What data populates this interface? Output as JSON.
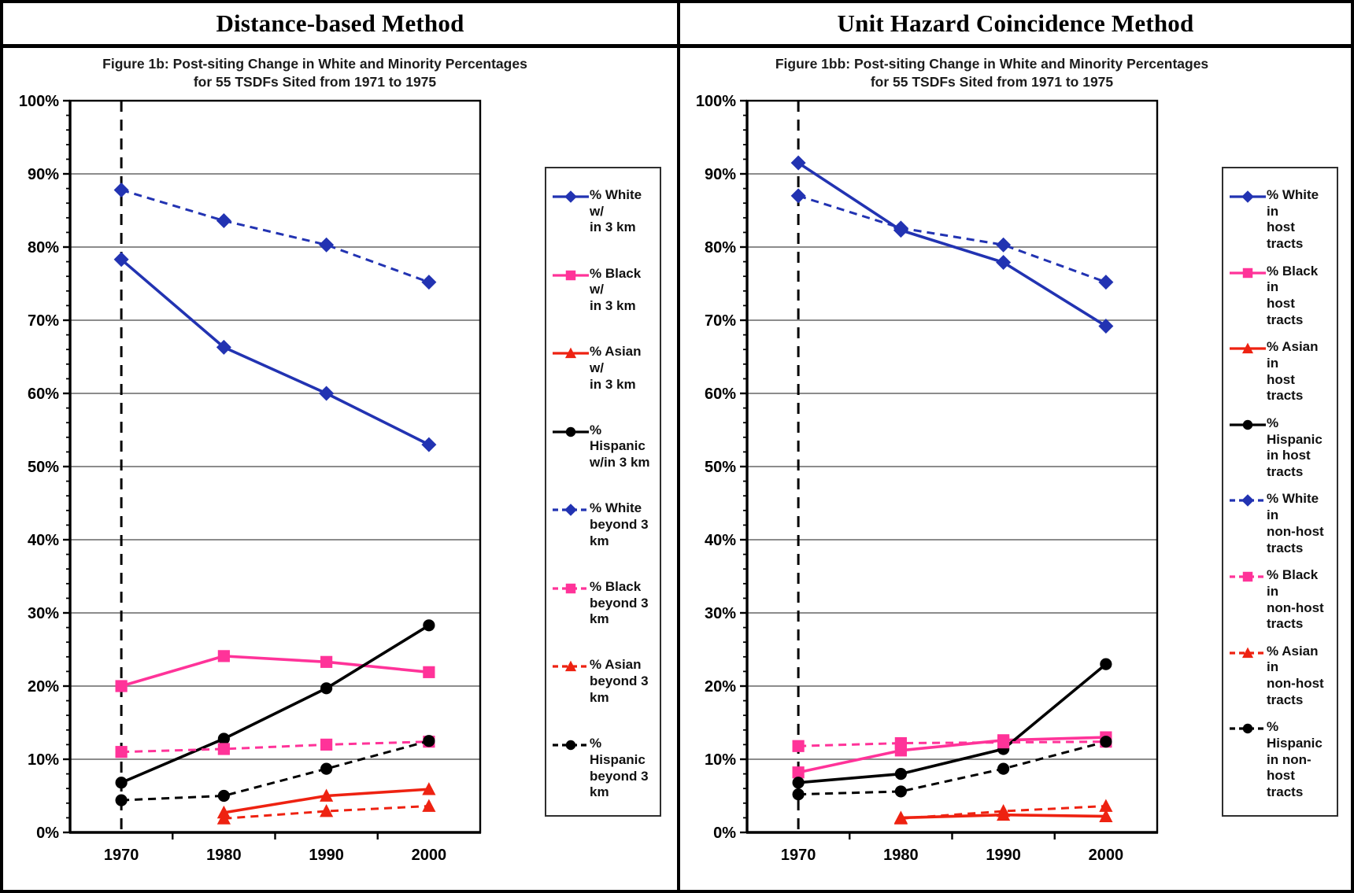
{
  "style": {
    "blue": "#2233b2",
    "magenta": "#ff3399",
    "red": "#ee2211",
    "black": "#000000",
    "grid_gray": "#8c8c8c",
    "axis_color": "#000000"
  },
  "chart_data": [
    {
      "type": "line",
      "panel_title": "Distance-based Method",
      "title_line1": "Figure 1b: Post-siting Change in White and Minority Percentages",
      "title_line2": "for 55 TSDFs Sited from 1971 to 1975",
      "categories": [
        "1970",
        "1980",
        "1990",
        "2000"
      ],
      "ylim": [
        0,
        100
      ],
      "ytick_step": 10,
      "ytick_minor_step": 2,
      "ytick_suffix": "%",
      "grid": "horizontal",
      "legend_position": "right",
      "vline_at_category": "1970",
      "series": [
        {
          "name": "% White w/in 3 km",
          "label_lines": [
            "% White w/",
            "in 3 km"
          ],
          "color": "#2233b2",
          "dash": false,
          "marker": "diamond",
          "values": [
            78.3,
            66.3,
            60.0,
            53.0
          ]
        },
        {
          "name": "% Black w/in 3 km",
          "label_lines": [
            "% Black w/",
            "in 3 km"
          ],
          "color": "#ff3399",
          "dash": false,
          "marker": "square",
          "values": [
            20.0,
            24.1,
            23.3,
            21.9
          ]
        },
        {
          "name": "% Asian w/in 3 km",
          "label_lines": [
            "% Asian w/",
            "in 3 km"
          ],
          "color": "#ee2211",
          "dash": false,
          "marker": "triangle",
          "values": [
            null,
            2.7,
            5.0,
            5.9
          ]
        },
        {
          "name": "% Hispanic w/in 3 km",
          "label_lines": [
            "% Hispanic",
            "w/in 3 km"
          ],
          "color": "#000000",
          "dash": false,
          "marker": "circle",
          "values": [
            6.8,
            12.8,
            19.7,
            28.3
          ]
        },
        {
          "name": "% White beyond 3 km",
          "label_lines": [
            "% White",
            "beyond 3",
            "km"
          ],
          "color": "#2233b2",
          "dash": true,
          "marker": "diamond",
          "values": [
            87.8,
            83.6,
            80.3,
            75.2
          ]
        },
        {
          "name": "% Black beyond 3 km",
          "label_lines": [
            "% Black",
            "beyond 3",
            "km"
          ],
          "color": "#ff3399",
          "dash": true,
          "marker": "square",
          "values": [
            11.0,
            11.4,
            12.0,
            12.4
          ]
        },
        {
          "name": "% Asian beyond 3 km",
          "label_lines": [
            "% Asian",
            "beyond 3",
            "km"
          ],
          "color": "#ee2211",
          "dash": true,
          "marker": "triangle",
          "values": [
            null,
            1.9,
            2.9,
            3.6
          ]
        },
        {
          "name": "% Hispanic beyond 3 km",
          "label_lines": [
            "% Hispanic",
            "beyond 3",
            "km"
          ],
          "color": "#000000",
          "dash": true,
          "marker": "circle",
          "values": [
            4.4,
            5.0,
            8.7,
            12.5
          ]
        }
      ]
    },
    {
      "type": "line",
      "panel_title": "Unit Hazard Coincidence Method",
      "title_line1": "Figure 1bb: Post-siting Change in White and Minority Percentages",
      "title_line2": "for 55 TSDFs Sited from 1971 to 1975",
      "categories": [
        "1970",
        "1980",
        "1990",
        "2000"
      ],
      "ylim": [
        0,
        100
      ],
      "ytick_step": 10,
      "ytick_minor_step": 2,
      "ytick_suffix": "%",
      "grid": "horizontal",
      "legend_position": "right",
      "vline_at_category": "1970",
      "series": [
        {
          "name": "% White in host tracts",
          "label_lines": [
            "% White in",
            "host tracts"
          ],
          "color": "#2233b2",
          "dash": false,
          "marker": "diamond",
          "values": [
            91.5,
            82.3,
            77.9,
            69.2
          ]
        },
        {
          "name": "% Black in host tracts",
          "label_lines": [
            "% Black in",
            "host tracts"
          ],
          "color": "#ff3399",
          "dash": false,
          "marker": "square",
          "values": [
            8.2,
            11.2,
            12.6,
            13.0
          ]
        },
        {
          "name": "% Asian in host tracts",
          "label_lines": [
            "% Asian in",
            "host tracts"
          ],
          "color": "#ee2211",
          "dash": false,
          "marker": "triangle",
          "values": [
            null,
            2.0,
            2.4,
            2.2
          ]
        },
        {
          "name": "% Hispanic in host tracts",
          "label_lines": [
            "% Hispanic",
            "in host",
            "tracts"
          ],
          "color": "#000000",
          "dash": false,
          "marker": "circle",
          "values": [
            6.8,
            8.0,
            11.4,
            23.0
          ]
        },
        {
          "name": "% White in non-host tracts",
          "label_lines": [
            "% White in",
            "non-host",
            "tracts"
          ],
          "color": "#2233b2",
          "dash": true,
          "marker": "diamond",
          "values": [
            87.0,
            82.6,
            80.3,
            75.2
          ]
        },
        {
          "name": "% Black in non-host tracts",
          "label_lines": [
            "% Black in",
            "non-host",
            "tracts"
          ],
          "color": "#ff3399",
          "dash": true,
          "marker": "square",
          "values": [
            11.8,
            12.2,
            12.3,
            12.4
          ]
        },
        {
          "name": "% Asian in non-host tracts",
          "label_lines": [
            "% Asian in",
            "non-host",
            "tracts"
          ],
          "color": "#ee2211",
          "dash": true,
          "marker": "triangle",
          "values": [
            null,
            1.9,
            2.9,
            3.6
          ]
        },
        {
          "name": "% Hispanic in non-host tracts",
          "label_lines": [
            "% Hispanic",
            "in non-host",
            "tracts"
          ],
          "color": "#000000",
          "dash": true,
          "marker": "circle",
          "values": [
            5.2,
            5.6,
            8.7,
            12.4
          ]
        }
      ]
    }
  ]
}
